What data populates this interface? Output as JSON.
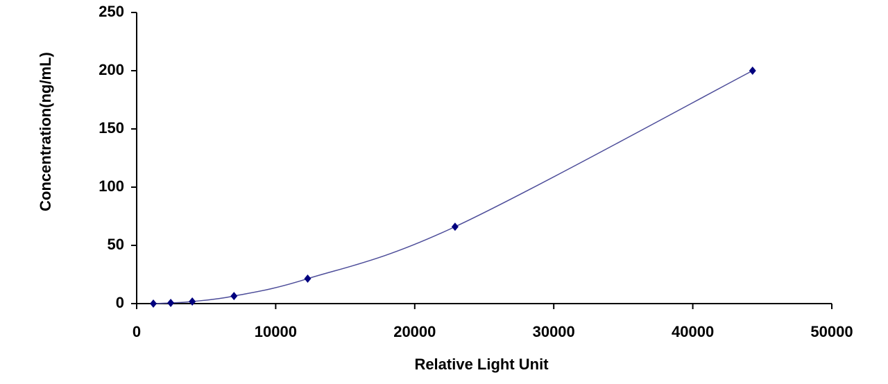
{
  "chart_data": {
    "type": "scatter",
    "x_label": "Relative Light Unit",
    "y_label": "Concentration(ng/mL)",
    "x": [
      1200,
      2450,
      4000,
      7000,
      12300,
      22900,
      44300
    ],
    "values": [
      0,
      0.6,
      1.8,
      6.5,
      21.4,
      66,
      200
    ],
    "color": "#00007f",
    "line_color": "#4c4c99",
    "smooth_line": true,
    "xlim": [
      0,
      50000
    ],
    "xticks": [
      0,
      10000,
      20000,
      30000,
      40000,
      50000
    ],
    "ylim": [
      0,
      250
    ],
    "yticks": [
      0,
      50,
      100,
      150,
      200,
      250
    ],
    "grid": false
  }
}
